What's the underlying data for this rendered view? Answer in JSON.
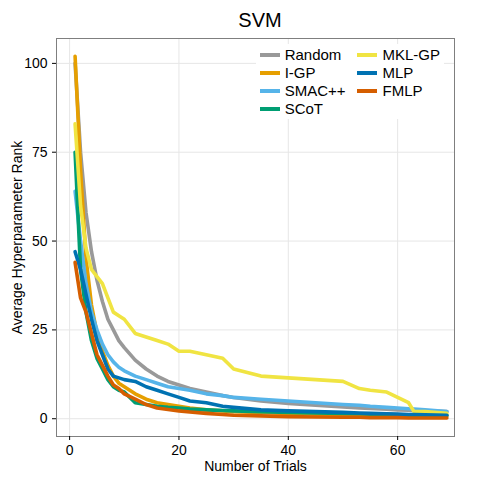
{
  "chart_data": {
    "type": "line",
    "title": "SVM",
    "x_label": "Number of Trials",
    "y_label": "Average Hyperparameter Rank",
    "x": [
      1,
      2,
      3,
      4,
      5,
      6,
      7,
      8,
      9,
      10,
      12,
      14,
      16,
      18,
      20,
      22,
      25,
      28,
      30,
      35,
      40,
      45,
      50,
      53,
      55,
      58,
      60,
      62,
      63,
      65,
      69
    ],
    "series": [
      {
        "name": "Random",
        "color": "#999999",
        "values": [
          100,
          75,
          58,
          47,
          39,
          33,
          28,
          25,
          22,
          20,
          16.5,
          14,
          12,
          10.5,
          9.5,
          8.5,
          7.5,
          6.5,
          6,
          5,
          4.3,
          3.8,
          3.3,
          3,
          2.9,
          2.7,
          2.5,
          2.4,
          2.3,
          2.2,
          2
        ]
      },
      {
        "name": "I-GP",
        "color": "#E69F00",
        "values": [
          102,
          70,
          45,
          32,
          24,
          19,
          15,
          12,
          10,
          9,
          7,
          5.5,
          4.5,
          4,
          3.5,
          3,
          2.5,
          2.2,
          2,
          1.8,
          1.5,
          1.3,
          1.2,
          1.1,
          1,
          1,
          0.9,
          0.9,
          0.8,
          0.8,
          0.7
        ]
      },
      {
        "name": "SMAC++",
        "color": "#56B4E9",
        "values": [
          64,
          50,
          38,
          30,
          25,
          21,
          18,
          16,
          14.5,
          13.5,
          12,
          11,
          10,
          9,
          8.5,
          8,
          7,
          6.5,
          6,
          5.5,
          5,
          4.5,
          4,
          3.8,
          3.5,
          3.2,
          3,
          2.8,
          2.7,
          2.5,
          2
        ]
      },
      {
        "name": "SCoT",
        "color": "#009E73",
        "values": [
          75,
          42,
          30,
          22,
          17,
          14,
          11,
          9,
          8,
          7.5,
          4.5,
          4,
          3.5,
          3.2,
          3,
          2.7,
          2.5,
          2.3,
          2.2,
          2,
          1.8,
          1.6,
          1.5,
          1.4,
          1.3,
          1.2,
          1.1,
          1,
          1,
          1,
          1
        ]
      },
      {
        "name": "MKL-GP",
        "color": "#F0E442",
        "values": [
          83,
          60,
          48,
          42,
          40,
          38,
          34,
          30,
          29,
          28,
          24,
          23,
          22,
          21,
          19,
          19,
          18,
          17,
          14,
          12,
          11.5,
          11,
          10.5,
          8.5,
          8,
          7.5,
          6,
          4.5,
          2,
          2,
          1.5
        ]
      },
      {
        "name": "MLP",
        "color": "#0072B2",
        "values": [
          47,
          42,
          35,
          28,
          22,
          18,
          14,
          12,
          11.5,
          11,
          10.5,
          9,
          8,
          7,
          6,
          5,
          4.5,
          3.5,
          3.2,
          2.5,
          2.2,
          2,
          1.8,
          1.6,
          1.5,
          1.4,
          1.3,
          1.2,
          1.2,
          1.1,
          1
        ]
      },
      {
        "name": "FMLP",
        "color": "#D55E00",
        "values": [
          44,
          34,
          30,
          24,
          18,
          15,
          12,
          9.5,
          8.5,
          7,
          5.5,
          4,
          3,
          2.6,
          2.2,
          1.9,
          1.5,
          1.2,
          1,
          0.8,
          0.6,
          0.5,
          0.4,
          0.4,
          0.3,
          0.3,
          0.3,
          0.2,
          0.2,
          0.2,
          0.2
        ]
      }
    ],
    "xlim": [
      -2.4,
      70.4
    ],
    "xticks": [
      0,
      20,
      40,
      60
    ],
    "ylim": [
      -5,
      107
    ],
    "yticks": [
      0,
      25,
      50,
      75,
      100
    ],
    "grid": true,
    "legend": "top-right"
  }
}
